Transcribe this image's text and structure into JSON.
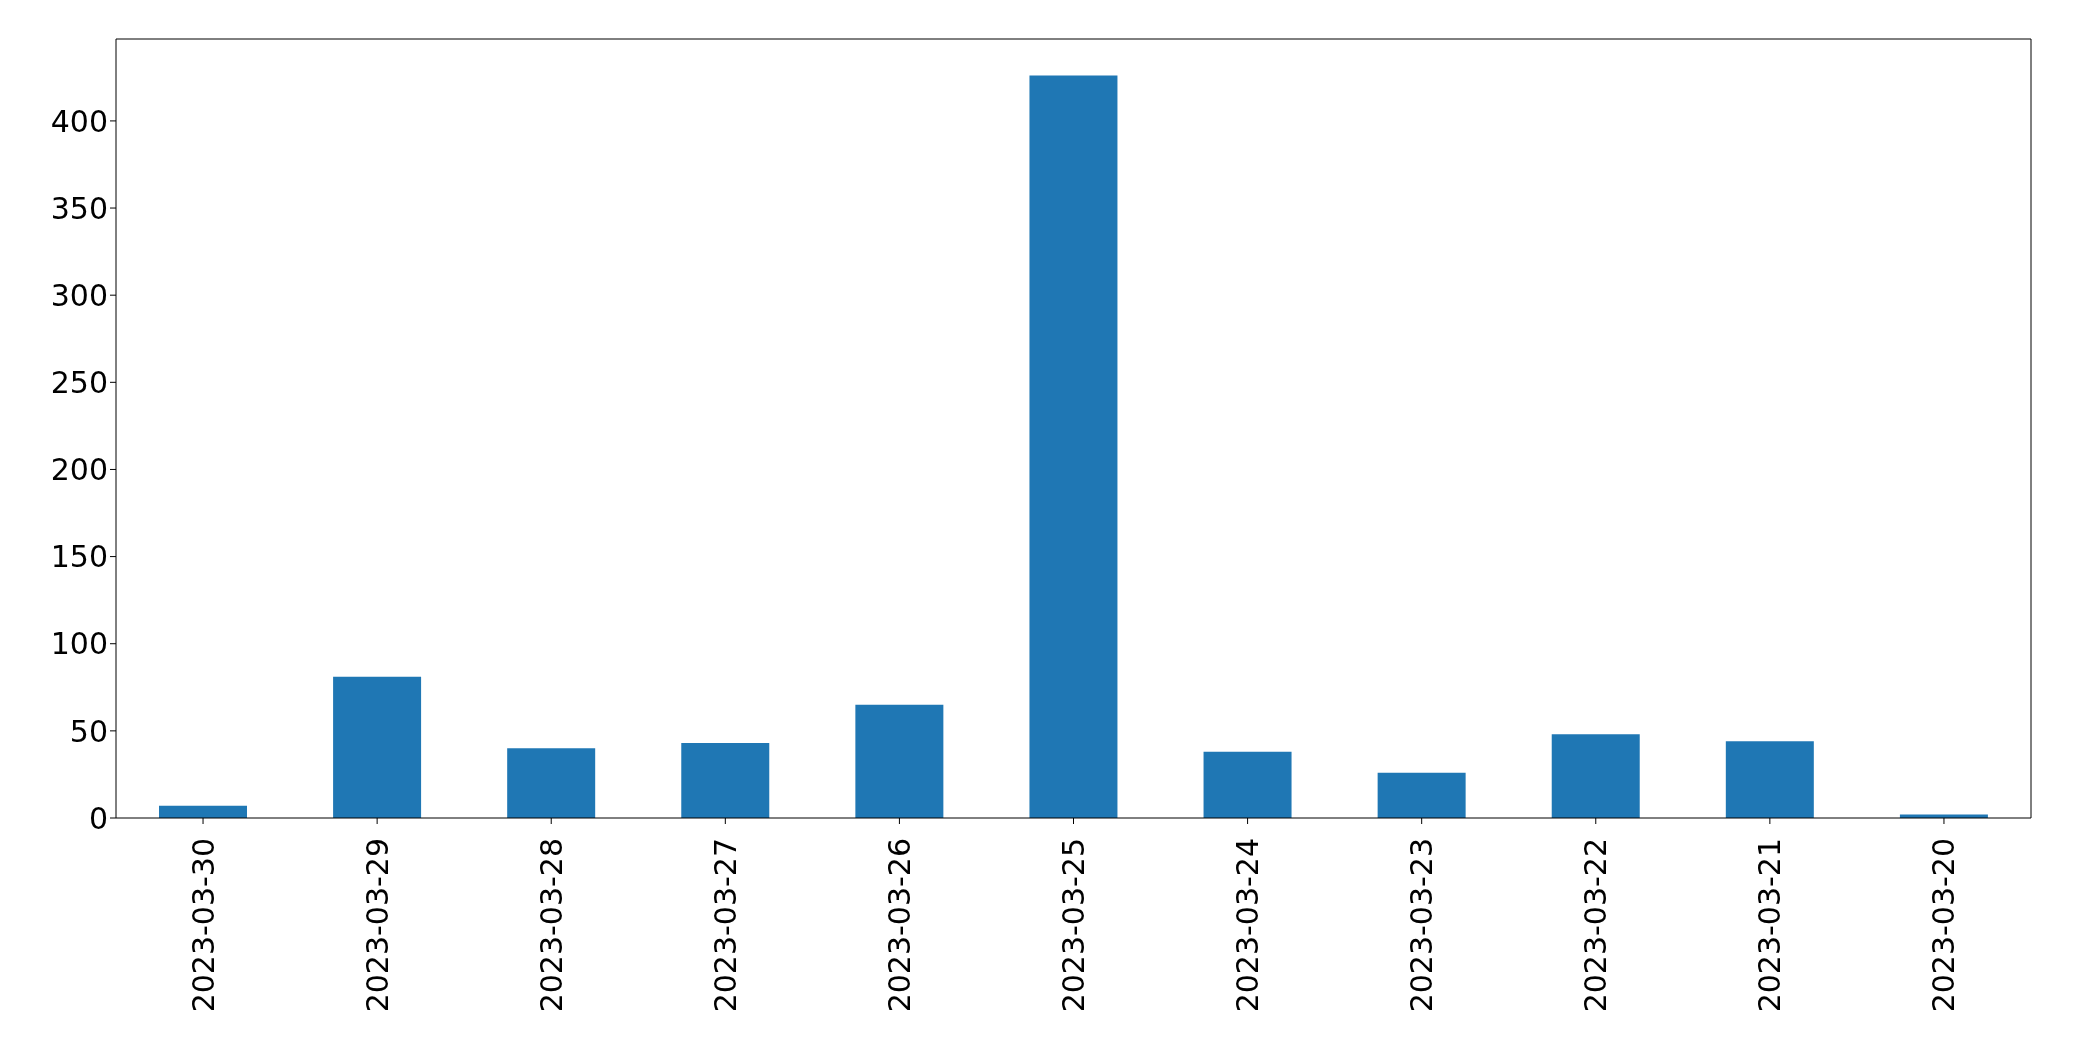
{
  "chart_data": {
    "type": "bar",
    "categories": [
      "2023-03-30",
      "2023-03-29",
      "2023-03-28",
      "2023-03-27",
      "2023-03-26",
      "2023-03-25",
      "2023-03-24",
      "2023-03-23",
      "2023-03-22",
      "2023-03-21",
      "2023-03-20"
    ],
    "values": [
      7,
      81,
      40,
      43,
      65,
      426,
      38,
      26,
      48,
      44,
      2
    ],
    "color": "#1f77b4",
    "ylim": [
      0,
      447
    ],
    "yticks": [
      0,
      50,
      100,
      150,
      200,
      250,
      300,
      350,
      400
    ],
    "grid": false
  }
}
